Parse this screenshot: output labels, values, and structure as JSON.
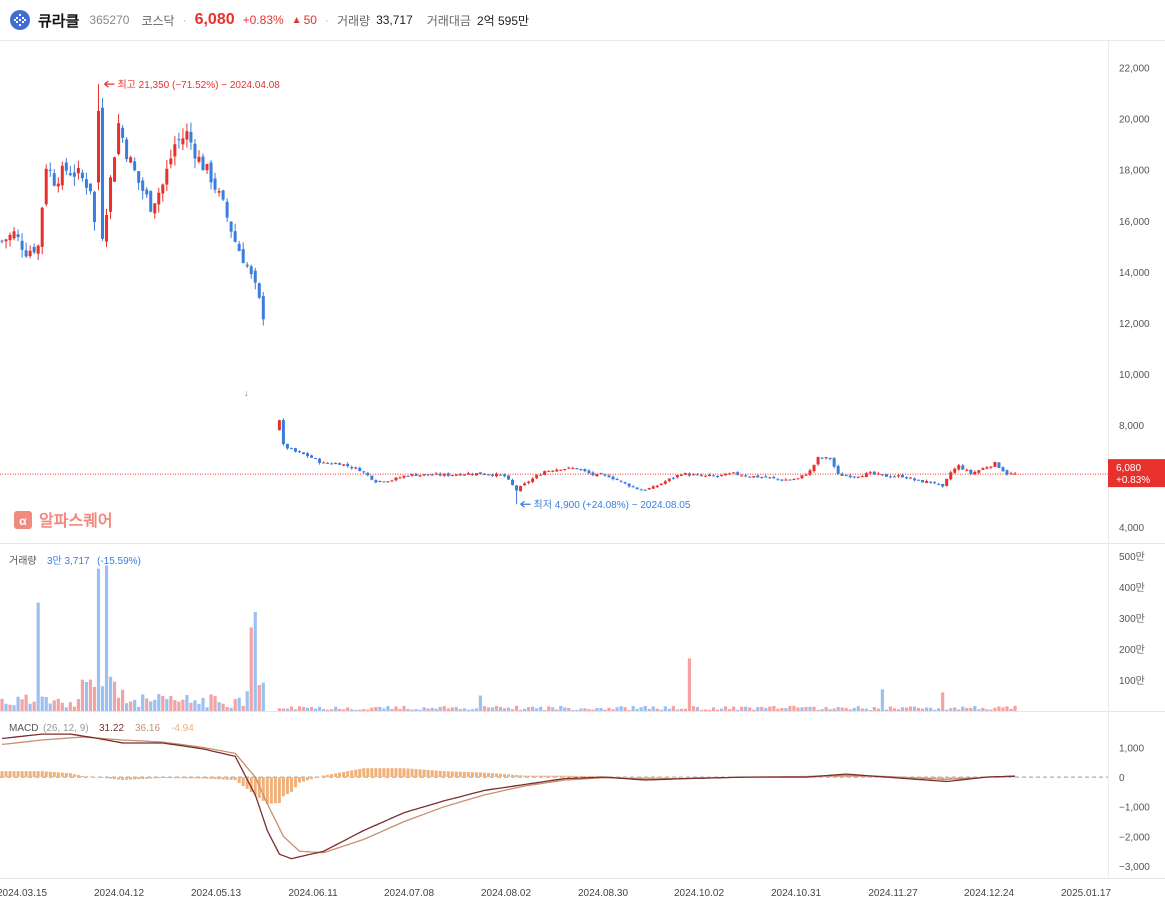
{
  "header": {
    "name": "큐라클",
    "code": "365270",
    "market": "코스닥",
    "price": "6,080",
    "change_pct": "+0.83%",
    "change_symbol": "▲",
    "change": "50",
    "volume_label": "거래량",
    "volume": "33,717",
    "amount_label": "거래대금",
    "amount": "2억 595만"
  },
  "colors": {
    "up": "#e8312c",
    "down": "#3b7ddd",
    "up_vol": "#f2a3a3",
    "down_vol": "#9cc0f2",
    "macd_line": "#7a2e2e",
    "signal_line": "#c98f6e",
    "hist": "#f0b07a"
  },
  "price_panel": {
    "ylim": [
      3500,
      23000
    ],
    "yticks": [
      "4,000",
      "6,000",
      "8,000",
      "10,000",
      "12,000",
      "14,000",
      "16,000",
      "18,000",
      "20,000",
      "22,000"
    ],
    "high_annotation": "최고 21,350 (−71.52%) − 2024.04.08",
    "low_annotation": "최저 4,900 (+24.08%) − 2024.08.05",
    "current_price": "6,080",
    "current_pct": "+0.83%",
    "watermark": "알파스퀘어"
  },
  "volume_panel": {
    "label": "거래량",
    "value": "3만 3,717",
    "pct": "(-15.59%)",
    "yticks": [
      "100만",
      "200만",
      "300만",
      "400만",
      "500만"
    ]
  },
  "macd_panel": {
    "label": "MACD",
    "params": "(26, 12, 9)",
    "macd": "31.22",
    "signal": "36.16",
    "hist": "-4.94",
    "yticks": [
      "1,000",
      "0",
      "−1,000",
      "−2,000",
      "−3,000"
    ]
  },
  "x_axis": {
    "labels": [
      "2024.03.15",
      "2024.04.12",
      "2024.05.13",
      "2024.06.11",
      "2024.07.08",
      "2024.08.02",
      "2024.08.30",
      "2024.10.02",
      "2024.10.31",
      "2024.11.27",
      "2024.12.24",
      "2025.01.17"
    ]
  },
  "chart_data": {
    "type": "candlestick",
    "close_anchors": [
      [
        0,
        15200
      ],
      [
        3,
        15500
      ],
      [
        6,
        14800
      ],
      [
        9,
        15000
      ],
      [
        11,
        18200
      ],
      [
        13,
        17600
      ],
      [
        16,
        18000
      ],
      [
        19,
        17800
      ],
      [
        22,
        17300
      ],
      [
        24,
        14500
      ],
      [
        26,
        16500
      ],
      [
        29,
        19800
      ],
      [
        31,
        18700
      ],
      [
        34,
        17500
      ],
      [
        37,
        16600
      ],
      [
        40,
        17400
      ],
      [
        43,
        19000
      ],
      [
        46,
        19400
      ],
      [
        49,
        18400
      ],
      [
        52,
        17700
      ],
      [
        55,
        16600
      ],
      [
        58,
        15200
      ],
      [
        61,
        14200
      ],
      [
        63,
        13400
      ],
      [
        65,
        12300
      ],
      [
        70,
        7200
      ],
      [
        73,
        6950
      ],
      [
        76,
        6800
      ],
      [
        80,
        6500
      ],
      [
        84,
        6500
      ],
      [
        89,
        6250
      ],
      [
        93,
        5800
      ],
      [
        97,
        5850
      ],
      [
        101,
        6050
      ],
      [
        106,
        6050
      ],
      [
        111,
        6050
      ],
      [
        116,
        6100
      ],
      [
        120,
        6100
      ],
      [
        125,
        6000
      ],
      [
        128,
        5450
      ],
      [
        131,
        5800
      ],
      [
        135,
        6200
      ],
      [
        139,
        6300
      ],
      [
        143,
        6300
      ],
      [
        147,
        6050
      ],
      [
        151,
        6000
      ],
      [
        155,
        5700
      ],
      [
        159,
        5450
      ],
      [
        162,
        5550
      ],
      [
        165,
        5800
      ],
      [
        169,
        6100
      ],
      [
        174,
        6000
      ],
      [
        178,
        6000
      ],
      [
        182,
        6100
      ],
      [
        186,
        6000
      ],
      [
        190,
        5950
      ],
      [
        194,
        5850
      ],
      [
        198,
        5900
      ],
      [
        201,
        6200
      ],
      [
        203,
        6700
      ],
      [
        206,
        6700
      ],
      [
        208,
        6050
      ],
      [
        212,
        6000
      ],
      [
        216,
        6100
      ],
      [
        220,
        6000
      ],
      [
        224,
        6000
      ],
      [
        228,
        5800
      ],
      [
        232,
        5750
      ],
      [
        234,
        5550
      ],
      [
        236,
        6150
      ],
      [
        238,
        6400
      ],
      [
        241,
        6100
      ],
      [
        244,
        6300
      ],
      [
        247,
        6500
      ],
      [
        250,
        6100
      ],
      [
        252,
        6080
      ]
    ],
    "high": {
      "index": 24,
      "value": 21350,
      "date": "2024.04.08"
    },
    "low": {
      "index": 128,
      "value": 4900,
      "date": "2024.08.05"
    },
    "volume_spikes": [
      [
        9,
        350
      ],
      [
        24,
        460
      ],
      [
        26,
        470
      ],
      [
        62,
        270
      ],
      [
        63,
        320
      ],
      [
        119,
        50
      ],
      [
        171,
        170
      ],
      [
        219,
        70
      ],
      [
        234,
        60
      ]
    ],
    "macd_anchors": [
      [
        0,
        1300
      ],
      [
        10,
        1450
      ],
      [
        17,
        1450
      ],
      [
        24,
        1300
      ],
      [
        30,
        1150
      ],
      [
        40,
        1150
      ],
      [
        50,
        950
      ],
      [
        58,
        700
      ],
      [
        63,
        -600
      ],
      [
        66,
        -1800
      ],
      [
        69,
        -2600
      ],
      [
        72,
        -2750
      ],
      [
        80,
        -2500
      ],
      [
        90,
        -1800
      ],
      [
        100,
        -1200
      ],
      [
        110,
        -800
      ],
      [
        120,
        -450
      ],
      [
        130,
        -250
      ],
      [
        140,
        -50
      ],
      [
        150,
        0
      ],
      [
        160,
        -100
      ],
      [
        170,
        -50
      ],
      [
        185,
        0
      ],
      [
        200,
        0
      ],
      [
        210,
        100
      ],
      [
        220,
        0
      ],
      [
        235,
        -150
      ],
      [
        245,
        0
      ],
      [
        252,
        31
      ]
    ],
    "signal_anchors": [
      [
        0,
        1100
      ],
      [
        10,
        1250
      ],
      [
        20,
        1350
      ],
      [
        30,
        1250
      ],
      [
        40,
        1180
      ],
      [
        50,
        1000
      ],
      [
        58,
        800
      ],
      [
        63,
        0
      ],
      [
        66,
        -900
      ],
      [
        70,
        -2000
      ],
      [
        74,
        -2500
      ],
      [
        80,
        -2550
      ],
      [
        90,
        -2100
      ],
      [
        100,
        -1500
      ],
      [
        110,
        -1000
      ],
      [
        120,
        -600
      ],
      [
        130,
        -300
      ],
      [
        140,
        -100
      ],
      [
        150,
        -20
      ],
      [
        160,
        -60
      ],
      [
        170,
        -50
      ],
      [
        185,
        0
      ],
      [
        200,
        20
      ],
      [
        210,
        50
      ],
      [
        220,
        20
      ],
      [
        235,
        -80
      ],
      [
        245,
        0
      ],
      [
        252,
        36
      ]
    ]
  }
}
